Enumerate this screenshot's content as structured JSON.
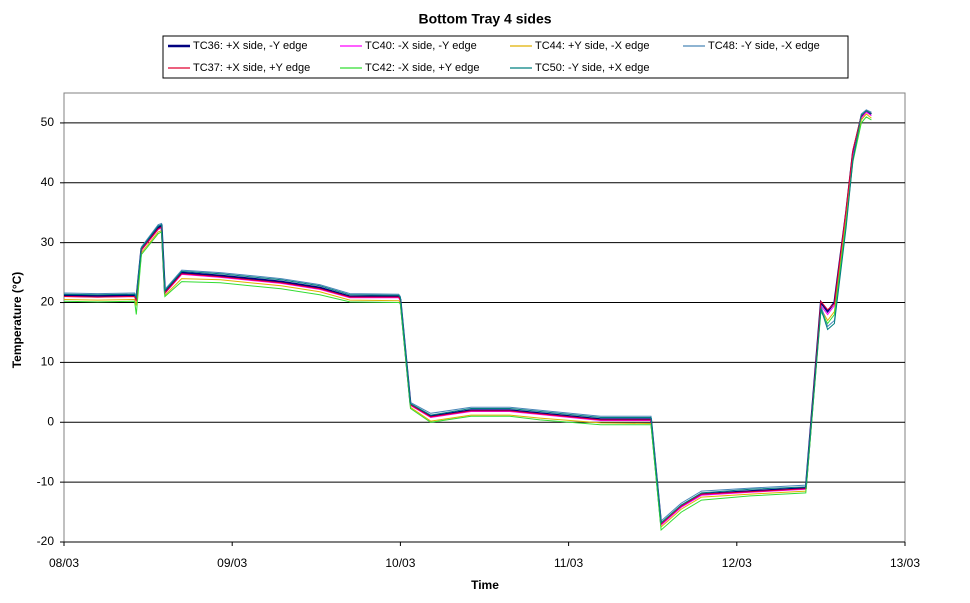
{
  "chart_data": {
    "type": "line",
    "title": "Bottom Tray 4 sides",
    "xlabel": "Time",
    "ylabel": "Temperature (°C)",
    "x": [
      8.0,
      8.2,
      8.42,
      8.43,
      8.46,
      8.56,
      8.58,
      8.6,
      8.7,
      8.93,
      9.29,
      9.52,
      9.7,
      9.99,
      10.0,
      10.06,
      10.18,
      10.42,
      10.65,
      10.83,
      11.19,
      11.49,
      11.55,
      11.67,
      11.79,
      12.08,
      12.41,
      12.5,
      12.54,
      12.58,
      12.65,
      12.69,
      12.74,
      12.77,
      12.8
    ],
    "series": [
      {
        "name": "TC36: +X side, -Y edge",
        "color": "#000080",
        "values": [
          21.2,
          21.1,
          21.2,
          20.5,
          29,
          32.5,
          32.8,
          21.8,
          25,
          24.5,
          23.5,
          22.5,
          21,
          21,
          20.5,
          3,
          1,
          2,
          2,
          1.5,
          0.5,
          0.5,
          -17,
          -14,
          -12,
          -11.5,
          -11,
          20,
          18.5,
          20,
          35,
          45,
          51,
          52,
          51.5
        ]
      },
      {
        "name": "TC40: -X side, -Y edge",
        "color": "#ff00ff",
        "values": [
          21,
          20.9,
          21,
          20.2,
          28.7,
          32.2,
          32.5,
          21.5,
          24.7,
          24.2,
          23.2,
          22.2,
          20.8,
          20.8,
          20.3,
          2.8,
          0.8,
          1.8,
          1.8,
          1.3,
          0.3,
          0.3,
          -17.2,
          -14.2,
          -12.2,
          -11.7,
          -11.2,
          19.5,
          18,
          19.5,
          34.5,
          44.5,
          50.8,
          51.8,
          51.2
        ]
      },
      {
        "name": "TC44: +Y side, -X edge",
        "color": "#e0b000",
        "values": [
          20.5,
          20.4,
          20.5,
          19.5,
          28.3,
          31.8,
          32,
          21.2,
          24,
          23.8,
          22.8,
          21.8,
          20.4,
          20.3,
          20,
          2.5,
          0.2,
          1.2,
          1.2,
          0.7,
          -0.1,
          -0.2,
          -17.5,
          -14.5,
          -12.5,
          -12,
          -11.5,
          19,
          17,
          18.5,
          34,
          44,
          50.5,
          51.5,
          50.8
        ]
      },
      {
        "name": "TC48: -Y side, -X edge",
        "color": "#4a86b8",
        "values": [
          21.6,
          21.5,
          21.6,
          21,
          29.3,
          33,
          33.2,
          22.2,
          25.4,
          25,
          24,
          23,
          21.5,
          21.4,
          21,
          3.3,
          1.5,
          2.5,
          2.5,
          2,
          1,
          1,
          -16.5,
          -13.5,
          -11.5,
          -11,
          -10.5,
          19.5,
          16,
          17,
          33,
          44,
          51.5,
          52.2,
          51.8
        ]
      },
      {
        "name": "TC37: +X side, +Y edge",
        "color": "#e00030",
        "values": [
          21,
          20.9,
          21,
          20.3,
          28.8,
          32.3,
          32.6,
          21.6,
          24.8,
          24.3,
          23.3,
          22.3,
          20.9,
          20.9,
          20.4,
          2.9,
          0.9,
          1.9,
          1.9,
          1.4,
          0.4,
          0.4,
          -17,
          -14,
          -12,
          -11.6,
          -11.1,
          20.2,
          18.8,
          19.8,
          35.5,
          45.5,
          51.2,
          52,
          51.6
        ]
      },
      {
        "name": "TC42: -X side, +Y edge",
        "color": "#33dd33",
        "values": [
          20.2,
          20.1,
          20.2,
          18,
          28,
          31.5,
          31.8,
          21,
          23.5,
          23.3,
          22.3,
          21.3,
          20.1,
          20,
          19.8,
          2.3,
          0,
          1,
          1,
          0.4,
          -0.4,
          -0.4,
          -18,
          -15,
          -13,
          -12.3,
          -11.8,
          18.5,
          16.5,
          18,
          33.5,
          43.5,
          50,
          51,
          50.5
        ]
      },
      {
        "name": "TC50: -Y side, +X edge",
        "color": "#008080",
        "values": [
          21.4,
          21.3,
          21.4,
          20.8,
          29.1,
          32.8,
          33,
          22,
          25.2,
          24.8,
          23.8,
          22.8,
          21.3,
          21.2,
          20.8,
          3.1,
          1.2,
          2.3,
          2.3,
          1.8,
          0.8,
          0.8,
          -16.8,
          -13.8,
          -11.8,
          -11.2,
          -10.8,
          19,
          15.5,
          16.5,
          32.5,
          43.8,
          51.3,
          52,
          51.6
        ]
      }
    ],
    "xlim": [
      8,
      13
    ],
    "xticks": [
      {
        "value": 8,
        "label": "08/03"
      },
      {
        "value": 9,
        "label": "09/03"
      },
      {
        "value": 10,
        "label": "10/03"
      },
      {
        "value": 11,
        "label": "11/03"
      },
      {
        "value": 12,
        "label": "12/03"
      },
      {
        "value": 13,
        "label": "13/03"
      }
    ],
    "ylim": [
      -20,
      55
    ],
    "yticks": [
      -20,
      -10,
      0,
      10,
      20,
      30,
      40,
      50
    ],
    "grid": true,
    "legend": "top"
  }
}
